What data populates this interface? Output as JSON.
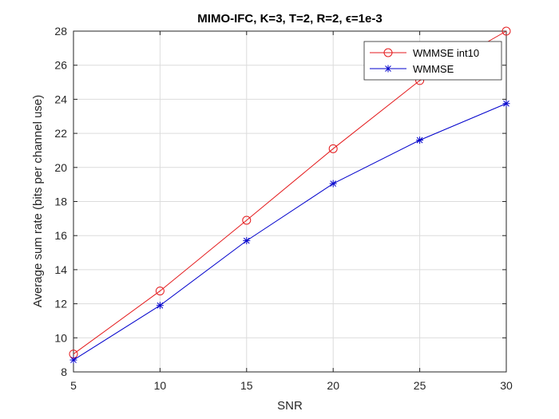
{
  "chart_data": {
    "type": "line",
    "title": "MIMO-IFC, K=3, T=2, R=2, ϵ=1e-3",
    "xlabel": "SNR",
    "ylabel": "Average sum rate (bits per channel use)",
    "x": [
      5,
      10,
      15,
      20,
      25,
      30
    ],
    "xlim": [
      5,
      30
    ],
    "ylim": [
      8,
      28
    ],
    "xticks": [
      "5",
      "10",
      "15",
      "20",
      "25",
      "30"
    ],
    "yticks": [
      "8",
      "10",
      "12",
      "14",
      "16",
      "18",
      "20",
      "22",
      "24",
      "26",
      "28"
    ],
    "grid": true,
    "legend_position": "top-right",
    "series": [
      {
        "name": "WMMSE int10",
        "color": "#e41a1c",
        "marker": "circle",
        "values": [
          9.05,
          12.75,
          16.9,
          21.1,
          25.1,
          28.0
        ]
      },
      {
        "name": "WMMSE",
        "color": "#0000cc",
        "marker": "asterisk",
        "values": [
          8.7,
          11.9,
          15.7,
          19.05,
          21.6,
          23.75
        ]
      }
    ]
  }
}
